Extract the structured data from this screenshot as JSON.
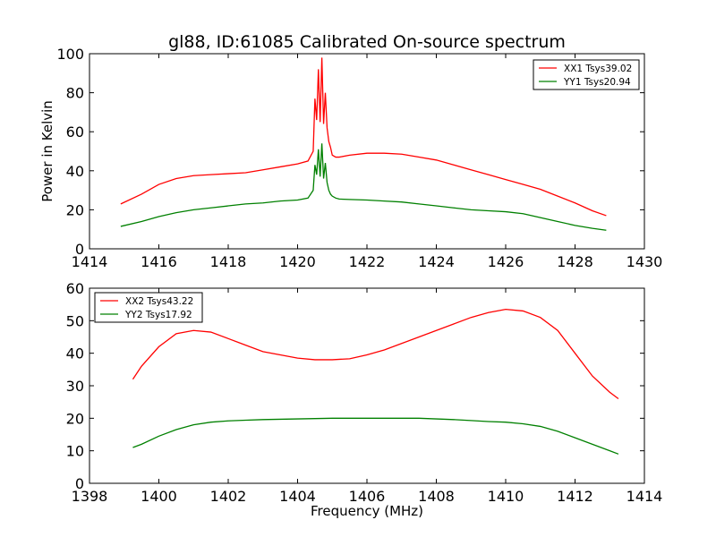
{
  "figure": {
    "title": "gl88, ID:61085 Calibrated On-source spectrum",
    "ylabel": "Power in Kelvin",
    "xlabel": "Frequency (MHz)"
  },
  "chart_data": [
    {
      "type": "line",
      "xlim": [
        1414,
        1430
      ],
      "ylim": [
        0,
        100
      ],
      "xticks": [
        "1414",
        "1416",
        "1418",
        "1420",
        "1422",
        "1424",
        "1426",
        "1428",
        "1430"
      ],
      "yticks": [
        "0",
        "20",
        "40",
        "60",
        "80",
        "100"
      ],
      "legend_position": "top-right",
      "grid": false,
      "series": [
        {
          "name": "XX1 Tsys39.02",
          "color": "#ff0000",
          "x": [
            1414.9,
            1415.5,
            1416.0,
            1416.5,
            1417.0,
            1417.5,
            1418.0,
            1418.5,
            1419.0,
            1419.5,
            1420.0,
            1420.3,
            1420.45,
            1420.5,
            1420.55,
            1420.6,
            1420.65,
            1420.7,
            1420.75,
            1420.8,
            1420.85,
            1420.9,
            1420.95,
            1421.0,
            1421.1,
            1421.2,
            1421.5,
            1422.0,
            1422.5,
            1423.0,
            1423.5,
            1424.0,
            1424.5,
            1425.0,
            1425.5,
            1426.0,
            1426.5,
            1427.0,
            1427.5,
            1428.0,
            1428.5,
            1428.9
          ],
          "y": [
            23,
            28,
            33,
            36,
            37.5,
            38,
            38.5,
            39,
            40.5,
            42,
            43.5,
            45,
            50,
            77,
            66,
            92,
            65,
            98,
            64,
            80,
            62,
            55,
            52,
            48,
            47,
            47,
            48,
            49,
            49,
            48.5,
            47,
            45.5,
            43,
            40.5,
            38,
            35.5,
            33,
            30.5,
            27,
            23.5,
            19.5,
            17
          ]
        },
        {
          "name": "YY1 Tsys20.94",
          "color": "#008000",
          "x": [
            1414.9,
            1415.5,
            1416.0,
            1416.5,
            1417.0,
            1417.5,
            1418.0,
            1418.5,
            1419.0,
            1419.5,
            1420.0,
            1420.3,
            1420.45,
            1420.5,
            1420.55,
            1420.6,
            1420.65,
            1420.7,
            1420.75,
            1420.8,
            1420.85,
            1420.9,
            1420.95,
            1421.0,
            1421.1,
            1421.2,
            1421.5,
            1422.0,
            1422.5,
            1423.0,
            1423.5,
            1424.0,
            1424.5,
            1425.0,
            1425.5,
            1426.0,
            1426.5,
            1427.0,
            1427.5,
            1428.0,
            1428.5,
            1428.9
          ],
          "y": [
            11.5,
            14,
            16.5,
            18.5,
            20,
            21,
            22,
            23,
            23.5,
            24.5,
            25,
            26,
            30,
            43,
            38,
            51,
            37,
            54,
            36,
            44,
            34,
            30,
            28,
            27,
            26,
            25.5,
            25.3,
            25,
            24.5,
            24,
            23,
            22,
            21,
            20,
            19.5,
            19,
            18,
            16,
            14,
            12,
            10.5,
            9.5
          ]
        }
      ]
    },
    {
      "type": "line",
      "xlim": [
        1398,
        1414
      ],
      "ylim": [
        0,
        60
      ],
      "xticks": [
        "1398",
        "1400",
        "1402",
        "1404",
        "1406",
        "1408",
        "1410",
        "1412",
        "1414"
      ],
      "yticks": [
        "0",
        "10",
        "20",
        "30",
        "40",
        "50",
        "60"
      ],
      "legend_position": "top-left",
      "grid": false,
      "series": [
        {
          "name": "XX2 Tsys43.22",
          "color": "#ff0000",
          "x": [
            1399.25,
            1399.5,
            1400.0,
            1400.5,
            1401.0,
            1401.5,
            1402.0,
            1402.5,
            1403.0,
            1403.5,
            1404.0,
            1404.5,
            1405.0,
            1405.5,
            1406.0,
            1406.5,
            1407.0,
            1407.5,
            1408.0,
            1408.5,
            1409.0,
            1409.5,
            1410.0,
            1410.5,
            1411.0,
            1411.5,
            1412.0,
            1412.5,
            1413.0,
            1413.25
          ],
          "y": [
            32,
            36,
            42,
            46,
            47,
            46.5,
            44.5,
            42.5,
            40.5,
            39.5,
            38.5,
            38,
            38,
            38.3,
            39.5,
            41,
            43,
            45,
            47,
            49,
            51,
            52.5,
            53.5,
            53,
            51,
            47,
            40,
            33,
            28,
            26
          ]
        },
        {
          "name": "YY2 Tsys17.92",
          "color": "#008000",
          "x": [
            1399.25,
            1399.5,
            1400.0,
            1400.5,
            1401.0,
            1401.5,
            1402.0,
            1402.5,
            1403.0,
            1403.5,
            1404.0,
            1404.5,
            1405.0,
            1405.5,
            1406.0,
            1406.5,
            1407.0,
            1407.5,
            1408.0,
            1408.5,
            1409.0,
            1409.5,
            1410.0,
            1410.5,
            1411.0,
            1411.5,
            1412.0,
            1412.5,
            1413.0,
            1413.25
          ],
          "y": [
            11,
            12,
            14.5,
            16.5,
            18,
            18.8,
            19.2,
            19.4,
            19.6,
            19.7,
            19.8,
            19.9,
            20,
            20,
            20,
            20,
            20,
            20,
            19.8,
            19.6,
            19.3,
            19,
            18.8,
            18.3,
            17.5,
            16,
            14,
            12,
            10,
            9
          ]
        }
      ]
    }
  ]
}
